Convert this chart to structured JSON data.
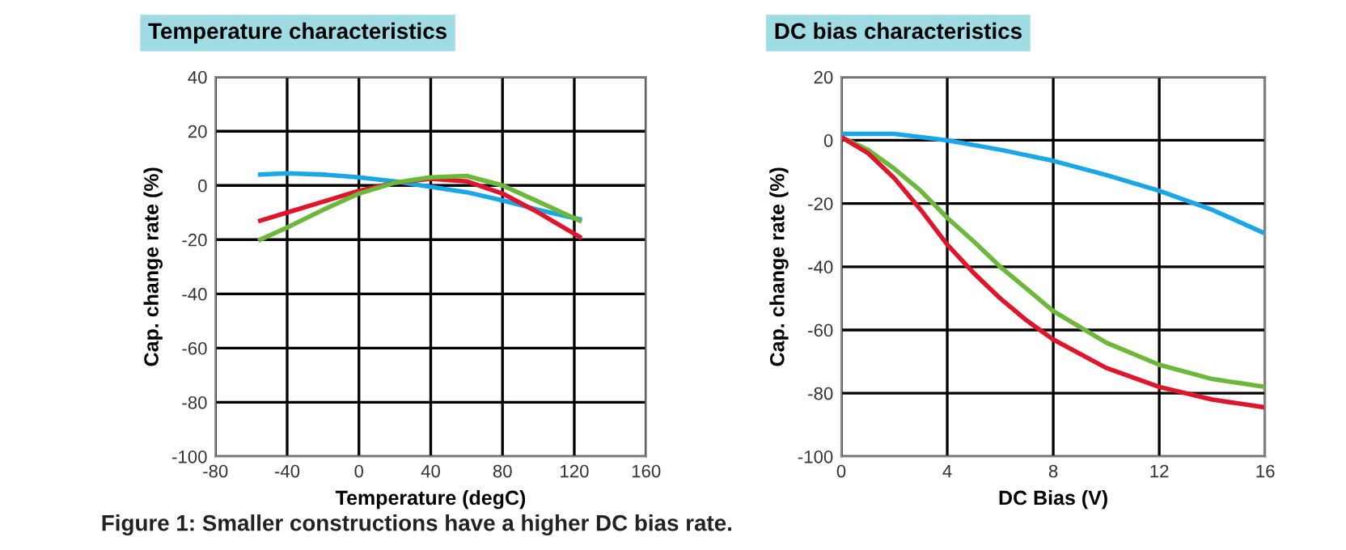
{
  "chart_data": [
    {
      "type": "line",
      "title": "Temperature characteristics",
      "xlabel": "Temperature (degC)",
      "ylabel": "Cap. change rate (%)",
      "xlim": [
        -80,
        160
      ],
      "xticks": [
        -80,
        -40,
        0,
        40,
        80,
        120,
        160
      ],
      "ylim": [
        -100,
        40
      ],
      "yticks": [
        -100,
        -80,
        -60,
        -40,
        -20,
        0,
        20,
        40
      ],
      "grid": true,
      "line_style": "solid",
      "series": [
        {
          "color": "#1aa7e8",
          "x": [
            -55,
            -40,
            -20,
            0,
            20,
            40,
            60,
            80,
            100,
            123
          ],
          "values": [
            4,
            4.5,
            4,
            3,
            1.5,
            -0.5,
            -2.5,
            -5.5,
            -9,
            -12.5
          ]
        },
        {
          "color": "#e0142a",
          "x": [
            -55,
            -40,
            -20,
            0,
            20,
            40,
            60,
            80,
            100,
            123
          ],
          "values": [
            -13,
            -10,
            -6,
            -2,
            1,
            2.5,
            1.5,
            -3,
            -10,
            -19
          ]
        },
        {
          "color": "#6bb83a",
          "x": [
            -55,
            -40,
            -20,
            0,
            20,
            40,
            60,
            80,
            100,
            123
          ],
          "values": [
            -20,
            -15.5,
            -9,
            -3,
            1,
            3,
            3.5,
            0,
            -6,
            -13
          ]
        }
      ]
    },
    {
      "type": "line",
      "title": "DC bias characteristics",
      "xlabel": "DC Bias (V)",
      "ylabel": "Cap. change rate (%)",
      "xlim": [
        0,
        16
      ],
      "xticks": [
        0,
        4,
        8,
        12,
        16
      ],
      "ylim": [
        -100,
        20
      ],
      "yticks": [
        -100,
        -80,
        -60,
        -40,
        -20,
        0,
        20
      ],
      "grid": true,
      "line_style": "solid",
      "annotations": [
        "Figure 1: Smaller constructions have a higher DC bias rate."
      ],
      "series": [
        {
          "color": "#1aa7e8",
          "x": [
            0,
            2,
            4,
            6,
            8,
            10,
            12,
            14,
            16
          ],
          "values": [
            2,
            2,
            0,
            -3,
            -6.5,
            -11,
            -16,
            -22,
            -29.5
          ]
        },
        {
          "color": "#6bb83a",
          "x": [
            0,
            1,
            2,
            3,
            4,
            5,
            6,
            7,
            8,
            10,
            12,
            14,
            16
          ],
          "values": [
            1,
            -3,
            -9,
            -16,
            -24.5,
            -32,
            -40,
            -47,
            -54,
            -64,
            -71,
            -75.5,
            -78
          ]
        },
        {
          "color": "#e0142a",
          "x": [
            0,
            1,
            2,
            3,
            4,
            5,
            6,
            7,
            8,
            10,
            12,
            14,
            16
          ],
          "values": [
            1,
            -4,
            -12,
            -22,
            -33,
            -42,
            -50,
            -57,
            -63,
            -72,
            -78,
            -82,
            -84.5
          ]
        }
      ]
    }
  ]
}
